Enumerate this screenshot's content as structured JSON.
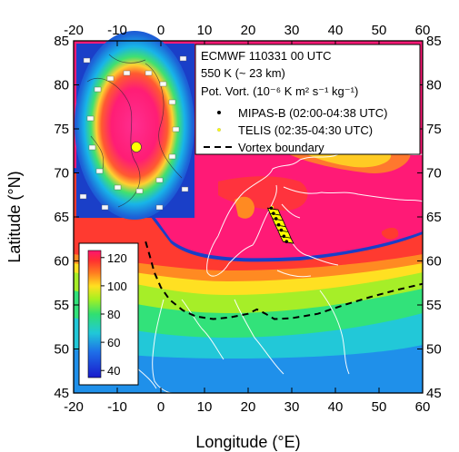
{
  "chart_data": {
    "type": "heatmap",
    "xlabel": "Longitude (°E)",
    "ylabel": "Latitude (°N)",
    "xlim": [
      -20,
      60
    ],
    "ylim": [
      45,
      85
    ],
    "x_ticks": [
      "-20",
      "-10",
      "0",
      "10",
      "20",
      "30",
      "40",
      "50",
      "60"
    ],
    "y_ticks": [
      "45",
      "50",
      "55",
      "60",
      "65",
      "70",
      "75",
      "80",
      "85"
    ],
    "legend_title_lines": [
      "ECMWF 110331 00 UTC",
      "550 K (~ 23 km)"
    ],
    "legend_units": "Pot. Vort. (10⁻⁶ K m² s⁻¹ kg⁻¹)",
    "legend_placement": "top-right",
    "series": [
      {
        "name": "MIPAS-B (02:00-04:38 UTC)",
        "style": "point",
        "color": "#000000",
        "points": [
          [
            25.3,
            66.0
          ],
          [
            25.8,
            65.4
          ],
          [
            26.4,
            64.8
          ],
          [
            27.0,
            64.1
          ],
          [
            27.6,
            63.5
          ],
          [
            28.2,
            62.8
          ],
          [
            28.8,
            62.2
          ]
        ]
      },
      {
        "name": "TELIS (02:35-04:30 UTC)",
        "style": "point",
        "color": "#ffff00",
        "points": [
          [
            25.5,
            66.1
          ],
          [
            26.0,
            65.5
          ],
          [
            26.6,
            64.9
          ],
          [
            27.2,
            64.2
          ],
          [
            27.8,
            63.6
          ],
          [
            28.4,
            62.9
          ],
          [
            29.0,
            62.3
          ]
        ]
      },
      {
        "name": "Vortex boundary",
        "style": "dashed",
        "color": "#000000",
        "points": [
          [
            -3.5,
            62.2
          ],
          [
            -2.5,
            60.5
          ],
          [
            -1.5,
            58.7
          ],
          [
            0,
            57.0
          ],
          [
            2,
            55.6
          ],
          [
            5,
            54.4
          ],
          [
            8,
            53.7
          ],
          [
            12,
            53.4
          ],
          [
            16,
            53.6
          ],
          [
            20,
            54.0
          ],
          [
            22,
            54.5
          ],
          [
            24,
            54.0
          ],
          [
            26,
            53.4
          ],
          [
            30,
            53.5
          ],
          [
            36,
            54.0
          ],
          [
            42,
            55.0
          ],
          [
            48,
            55.9
          ],
          [
            54,
            56.7
          ],
          [
            60,
            57.4
          ]
        ]
      }
    ],
    "colorbar": {
      "ticks": [
        "40",
        "60",
        "80",
        "100",
        "120"
      ],
      "range": [
        35,
        125
      ],
      "placement": "bottom-left inset"
    },
    "inset": {
      "description_lines": [
        "polar-stereographic overview map"
      ],
      "marker_color": "#ffff00"
    }
  }
}
